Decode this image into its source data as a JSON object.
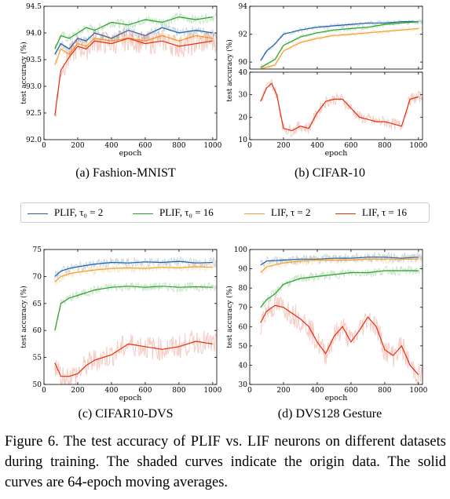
{
  "colors": {
    "plif2": "#1f5fa0",
    "plif16": "#2ca02c",
    "lif2": "#f0a030",
    "lif16": "#e03010"
  },
  "legend": [
    {
      "key": "plif2",
      "label": "PLIF, τ₀ = 2"
    },
    {
      "key": "plif16",
      "label": "PLIF, τ₀ = 16"
    },
    {
      "key": "lif2",
      "label": "LIF, τ = 2"
    },
    {
      "key": "lif16",
      "label": "LIF, τ = 16"
    }
  ],
  "captions": {
    "a": "(a)  Fashion-MNIST",
    "b": "(b)  CIFAR-10",
    "c": "(c)  CIFAR10-DVS",
    "d": "(d)  DVS128 Gesture"
  },
  "figure_caption": "Figure 6. The test accuracy of PLIF vs. LIF neurons on different datasets during training. The shaded curves indicate the origin data. The solid curves are 64-epoch moving averages.",
  "chart_data": [
    {
      "id": "a",
      "type": "line",
      "title": "",
      "xlabel": "epoch",
      "ylabel": "test accuracy (%)",
      "xlim": [
        0,
        1024
      ],
      "ylim": [
        92.0,
        94.5
      ],
      "xticks": [
        0,
        200,
        400,
        600,
        800,
        1000
      ],
      "yticks": [
        92.0,
        92.5,
        93.0,
        93.5,
        94.0,
        94.5
      ],
      "yticklabels": [
        "92.0",
        "92.5",
        "93.0",
        "93.5",
        "94.0",
        "94.5"
      ],
      "series": [
        {
          "key": "plif2",
          "x": [
            64,
            100,
            150,
            200,
            250,
            300,
            400,
            500,
            600,
            700,
            800,
            900,
            1000
          ],
          "y": [
            93.6,
            93.8,
            93.7,
            93.9,
            93.85,
            94.0,
            93.9,
            94.05,
            93.95,
            94.1,
            94.0,
            94.05,
            94.0
          ]
        },
        {
          "key": "plif16",
          "x": [
            64,
            100,
            150,
            200,
            250,
            300,
            400,
            500,
            600,
            700,
            800,
            900,
            1000
          ],
          "y": [
            93.7,
            93.95,
            93.9,
            94.0,
            94.1,
            94.05,
            94.2,
            94.15,
            94.25,
            94.2,
            94.3,
            94.25,
            94.3
          ]
        },
        {
          "key": "lif2",
          "x": [
            64,
            100,
            150,
            200,
            250,
            300,
            400,
            500,
            600,
            700,
            800,
            900,
            1000
          ],
          "y": [
            93.4,
            93.7,
            93.6,
            93.8,
            93.75,
            93.9,
            93.85,
            93.9,
            93.85,
            93.95,
            93.85,
            93.95,
            93.9
          ]
        },
        {
          "key": "lif16",
          "x": [
            64,
            100,
            150,
            200,
            250,
            300,
            400,
            500,
            600,
            700,
            800,
            900,
            1000
          ],
          "y": [
            92.45,
            93.3,
            93.55,
            93.75,
            93.7,
            93.85,
            93.8,
            93.9,
            93.8,
            93.85,
            93.75,
            93.8,
            93.85
          ]
        }
      ]
    },
    {
      "id": "b_top",
      "type": "line",
      "title": "",
      "xlabel": "",
      "ylabel": "test accuracy (%)",
      "xlim": [
        0,
        1024
      ],
      "ylim": [
        89.5,
        94
      ],
      "xticks": [
        0,
        200,
        400,
        600,
        800,
        1000
      ],
      "yticks": [
        90,
        92,
        94
      ],
      "yticklabels": [
        "90",
        "92",
        "94"
      ],
      "series": [
        {
          "key": "plif2",
          "x": [
            64,
            100,
            150,
            200,
            300,
            400,
            500,
            600,
            700,
            800,
            900,
            1000
          ],
          "y": [
            90.1,
            90.8,
            91.3,
            92.0,
            92.3,
            92.5,
            92.6,
            92.7,
            92.8,
            92.8,
            92.9,
            92.9
          ]
        },
        {
          "key": "plif16",
          "x": [
            64,
            150,
            200,
            300,
            400,
            500,
            600,
            700,
            800,
            900,
            1000
          ],
          "y": [
            89.6,
            90.2,
            91.2,
            91.8,
            92.1,
            92.3,
            92.4,
            92.5,
            92.7,
            92.8,
            92.9
          ]
        },
        {
          "key": "lif2",
          "x": [
            64,
            150,
            200,
            300,
            400,
            500,
            600,
            700,
            800,
            900,
            1000
          ],
          "y": [
            89.5,
            89.8,
            90.8,
            91.4,
            91.7,
            91.9,
            92.0,
            92.1,
            92.2,
            92.3,
            92.4
          ]
        }
      ]
    },
    {
      "id": "b_bottom",
      "type": "line",
      "title": "",
      "xlabel": "epoch",
      "ylabel": "",
      "xlim": [
        0,
        1024
      ],
      "ylim": [
        10,
        40
      ],
      "xticks": [
        0,
        200,
        400,
        600,
        800,
        1000
      ],
      "yticks": [
        10,
        20,
        30,
        40
      ],
      "yticklabels": [
        "10",
        "20",
        "30",
        "40"
      ],
      "xticklabels": [
        "0",
        "200",
        "400",
        "600",
        "800",
        "1000"
      ],
      "series": [
        {
          "key": "lif16",
          "x": [
            64,
            100,
            130,
            160,
            200,
            250,
            300,
            350,
            400,
            450,
            500,
            550,
            600,
            650,
            700,
            750,
            800,
            850,
            900,
            950,
            1000
          ],
          "y": [
            27,
            33,
            35,
            30,
            15,
            14,
            16,
            15,
            22,
            27,
            28,
            28,
            24,
            20,
            19,
            18,
            18,
            17,
            16,
            28,
            29
          ]
        }
      ]
    },
    {
      "id": "c",
      "type": "line",
      "title": "",
      "xlabel": "epoch",
      "ylabel": "test accuracy (%)",
      "xlim": [
        0,
        1024
      ],
      "ylim": [
        50,
        75
      ],
      "xticks": [
        0,
        200,
        400,
        600,
        800,
        1000
      ],
      "yticks": [
        50,
        55,
        60,
        65,
        70,
        75
      ],
      "yticklabels": [
        "50",
        "55",
        "60",
        "65",
        "70",
        "75"
      ],
      "series": [
        {
          "key": "plif2",
          "x": [
            64,
            100,
            150,
            200,
            300,
            400,
            500,
            600,
            700,
            800,
            900,
            1000
          ],
          "y": [
            70.0,
            71.0,
            71.5,
            71.8,
            72.3,
            72.6,
            72.5,
            72.7,
            72.6,
            72.8,
            72.5,
            72.6
          ]
        },
        {
          "key": "plif16",
          "x": [
            64,
            100,
            150,
            200,
            300,
            400,
            500,
            600,
            700,
            800,
            900,
            1000
          ],
          "y": [
            60.0,
            65.0,
            66.0,
            66.5,
            67.5,
            68.0,
            68.2,
            68.0,
            68.2,
            68.0,
            68.1,
            68.0
          ]
        },
        {
          "key": "lif2",
          "x": [
            64,
            100,
            150,
            200,
            300,
            400,
            500,
            600,
            700,
            800,
            900,
            1000
          ],
          "y": [
            69.0,
            70.0,
            70.5,
            70.8,
            71.2,
            71.5,
            71.6,
            71.5,
            71.7,
            71.6,
            71.8,
            71.7
          ]
        },
        {
          "key": "lif16",
          "x": [
            64,
            100,
            150,
            200,
            250,
            300,
            400,
            500,
            600,
            700,
            800,
            900,
            1000
          ],
          "y": [
            54.0,
            51.5,
            51.5,
            52.0,
            53.5,
            54.5,
            55.5,
            57.5,
            57.0,
            56.5,
            57.0,
            58.0,
            57.5
          ]
        }
      ]
    },
    {
      "id": "d",
      "type": "line",
      "title": "",
      "xlabel": "epoch",
      "ylabel": "test accuracy (%)",
      "xlim": [
        0,
        1024
      ],
      "ylim": [
        30,
        100
      ],
      "xticks": [
        0,
        200,
        400,
        600,
        800,
        1000
      ],
      "yticks": [
        30,
        40,
        50,
        60,
        70,
        80,
        90,
        100
      ],
      "yticklabels": [
        "30",
        "40",
        "50",
        "60",
        "70",
        "80",
        "90",
        "100"
      ],
      "series": [
        {
          "key": "plif2",
          "x": [
            64,
            100,
            200,
            300,
            400,
            500,
            600,
            700,
            800,
            900,
            1000
          ],
          "y": [
            92,
            94,
            94.5,
            95,
            95,
            95.5,
            95.5,
            96,
            96,
            95.5,
            96
          ]
        },
        {
          "key": "plif16",
          "x": [
            64,
            100,
            150,
            200,
            300,
            400,
            500,
            600,
            700,
            800,
            900,
            1000
          ],
          "y": [
            70,
            74,
            77,
            82,
            85,
            86,
            87,
            88,
            88,
            89,
            89,
            89
          ]
        },
        {
          "key": "lif2",
          "x": [
            64,
            100,
            200,
            300,
            400,
            500,
            600,
            700,
            800,
            900,
            1000
          ],
          "y": [
            88,
            91,
            93,
            94,
            94.5,
            94.5,
            94.5,
            95,
            95,
            95,
            95
          ]
        },
        {
          "key": "lif16",
          "x": [
            64,
            100,
            150,
            200,
            250,
            300,
            350,
            400,
            450,
            500,
            550,
            600,
            650,
            700,
            750,
            800,
            850,
            900,
            950,
            1000
          ],
          "y": [
            62,
            68,
            71,
            70,
            67,
            64,
            60,
            52,
            46,
            55,
            60,
            52,
            58,
            65,
            60,
            48,
            45,
            50,
            40,
            35
          ]
        }
      ]
    }
  ]
}
